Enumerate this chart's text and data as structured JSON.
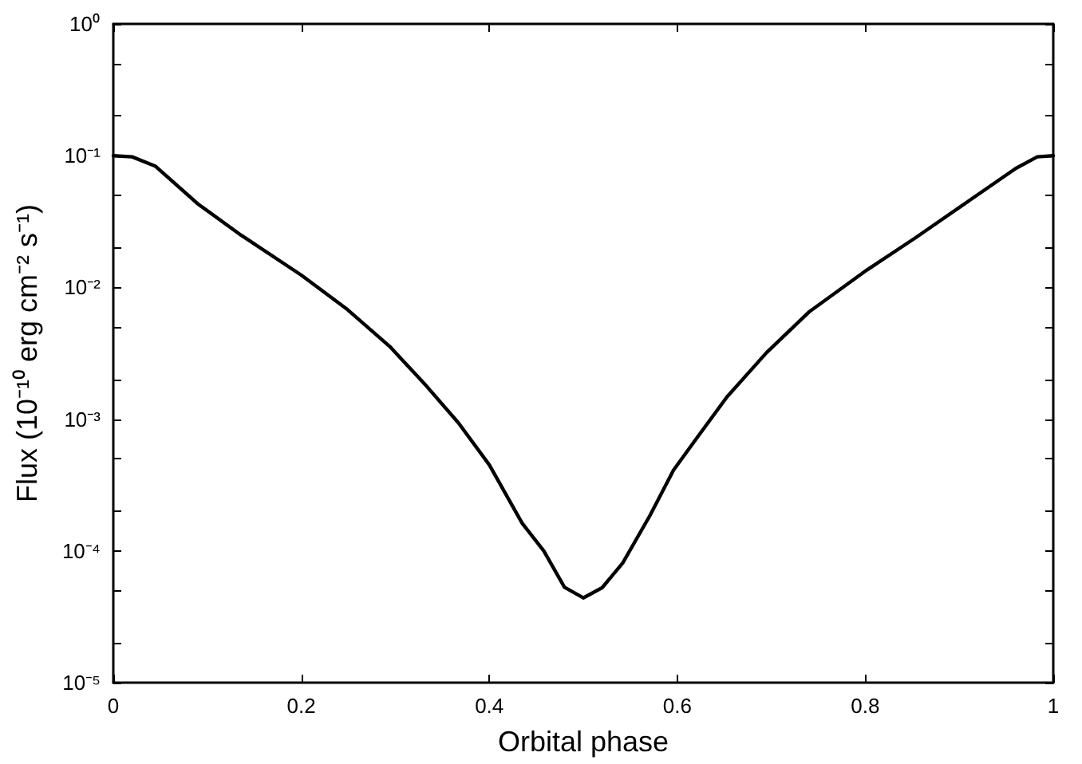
{
  "chart_data": {
    "type": "line",
    "xlabel": "Orbital phase",
    "ylabel": "Flux (10⁻¹⁰ erg cm⁻² s⁻¹)",
    "x": [
      0,
      0.02,
      0.045,
      0.09,
      0.136,
      0.2,
      0.249,
      0.294,
      0.333,
      0.367,
      0.4,
      0.435,
      0.458,
      0.48,
      0.5,
      0.52,
      0.542,
      0.571,
      0.596,
      0.622,
      0.653,
      0.695,
      0.74,
      0.802,
      0.853,
      0.91,
      0.96,
      0.983,
      1
    ],
    "series": [
      {
        "color": "#000000",
        "values": [
          0.1,
          0.098,
          0.083,
          0.043,
          0.0249,
          0.0124,
          0.0068,
          0.00357,
          0.00179,
          0.00094,
          0.00045,
          0.000162,
          0.0001,
          5.3e-05,
          4.4e-05,
          5.25e-05,
          8.1e-05,
          0.000186,
          0.00041,
          0.00074,
          0.00148,
          0.0032,
          0.0065,
          0.0136,
          0.0237,
          0.0453,
          0.08,
          0.098,
          0.1
        ]
      }
    ],
    "xlim": [
      0,
      1
    ],
    "xticks": [
      0,
      0.2,
      0.4,
      0.6,
      0.8,
      1
    ],
    "ylim": [
      1e-05,
      1
    ],
    "log": "y",
    "yticks": [
      {
        "value": 1e-05,
        "label": "10⁻⁵"
      },
      {
        "value": 2e-05,
        "label": null
      },
      {
        "value": 5e-05,
        "label": null
      },
      {
        "value": 0.0001,
        "label": "10⁻⁴"
      },
      {
        "value": 0.0002,
        "label": null
      },
      {
        "value": 0.0005,
        "label": null
      },
      {
        "value": 0.001,
        "label": "10⁻³"
      },
      {
        "value": 0.002,
        "label": null
      },
      {
        "value": 0.005,
        "label": null
      },
      {
        "value": 0.01,
        "label": "10⁻²"
      },
      {
        "value": 0.02,
        "label": null
      },
      {
        "value": 0.05,
        "label": null
      },
      {
        "value": 0.1,
        "label": "10⁻¹"
      },
      {
        "value": 0.2,
        "label": null
      },
      {
        "value": 0.5,
        "label": null
      },
      {
        "value": 1,
        "label": "10⁰"
      }
    ],
    "grid": false,
    "marker": "none",
    "line_style": "solid"
  }
}
